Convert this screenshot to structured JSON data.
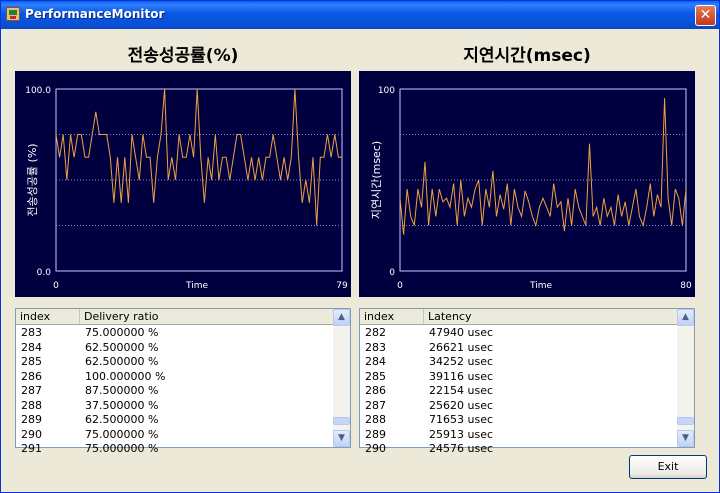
{
  "window": {
    "title": "PerformanceMonitor",
    "close_glyph": "✕"
  },
  "icons": {
    "app": "app-icon",
    "close": "close-icon",
    "scroll_up": "chevron-up-icon",
    "scroll_down": "chevron-down-icon"
  },
  "colors": {
    "plot_bg": "#000040",
    "line": "#f0a040",
    "grid": "#8888cc",
    "frame": "#c8c8ff",
    "text": "#ffffff"
  },
  "charts": [
    {
      "title": "전송성공률(%)",
      "ylabel": "전송성공률 (%)",
      "xlabel": "Time",
      "ytop": "100.0",
      "ybottom": "0.0",
      "xleft": "0",
      "xright": "79"
    },
    {
      "title": "지연시간(msec)",
      "ylabel": "지연시간(msec)",
      "xlabel": "Time",
      "ytop": "100",
      "ybottom": "0",
      "xleft": "0",
      "xright": "80"
    }
  ],
  "chart_data": [
    {
      "type": "line",
      "title": "전송성공률(%)",
      "xlabel": "Time",
      "ylabel": "전송성공률 (%)",
      "xlim": [
        0,
        79
      ],
      "ylim": [
        0,
        100
      ],
      "grid": true,
      "gridlines": [
        25,
        50,
        75
      ],
      "y": [
        75,
        62.5,
        75,
        50,
        75,
        62.5,
        75,
        75,
        62.5,
        62.5,
        75,
        87.5,
        75,
        75,
        75,
        62.5,
        37.5,
        62.5,
        37.5,
        62.5,
        37.5,
        75,
        62.5,
        50,
        75,
        62.5,
        62.5,
        37.5,
        62.5,
        75,
        100,
        50,
        62.5,
        50,
        75,
        62.5,
        62.5,
        75,
        62.5,
        100,
        62.5,
        37.5,
        62.5,
        50,
        75,
        50,
        62.5,
        62.5,
        50,
        62.5,
        75,
        75,
        62.5,
        50,
        62.5,
        50,
        62.5,
        50,
        62.5,
        62.5,
        75,
        62.5,
        50,
        62.5,
        50,
        62.5,
        100,
        62.5,
        37.5,
        50,
        37.5,
        62.5,
        25,
        62.5,
        62.5,
        75,
        62.5,
        75,
        62.5,
        62.5
      ]
    },
    {
      "type": "line",
      "title": "지연시간(msec)",
      "xlabel": "Time",
      "ylabel": "지연시간(msec)",
      "xlim": [
        0,
        80
      ],
      "ylim": [
        0,
        100
      ],
      "grid": true,
      "gridlines": [
        25,
        50,
        75
      ],
      "y": [
        40,
        20,
        45,
        30,
        25,
        45,
        35,
        60,
        25,
        45,
        30,
        45,
        38,
        40,
        35,
        48,
        25,
        50,
        30,
        40,
        35,
        45,
        50,
        25,
        45,
        35,
        55,
        30,
        42,
        34,
        48,
        25,
        45,
        35,
        30,
        44,
        38,
        30,
        25,
        35,
        40,
        35,
        30,
        48,
        35,
        38,
        22,
        40,
        25,
        45,
        35,
        30,
        25,
        70,
        30,
        35,
        25,
        40,
        30,
        35,
        25,
        42,
        30,
        38,
        25,
        35,
        45,
        30,
        25,
        35,
        48,
        30,
        42,
        35,
        95,
        40,
        25,
        45,
        40,
        25,
        45
      ]
    }
  ],
  "lists": [
    {
      "headers": [
        "index",
        "Delivery ratio"
      ],
      "rows": [
        [
          "283",
          "75.000000 %"
        ],
        [
          "284",
          "62.500000 %"
        ],
        [
          "285",
          "62.500000 %"
        ],
        [
          "286",
          "100.000000 %"
        ],
        [
          "287",
          "87.500000 %"
        ],
        [
          "288",
          "37.500000 %"
        ],
        [
          "289",
          "62.500000 %"
        ],
        [
          "290",
          "75.000000 %"
        ],
        [
          "291",
          "75.000000 %"
        ]
      ]
    },
    {
      "headers": [
        "index",
        "Latency"
      ],
      "rows": [
        [
          "282",
          "47940 usec"
        ],
        [
          "283",
          "26621 usec"
        ],
        [
          "284",
          "34252 usec"
        ],
        [
          "285",
          "39116 usec"
        ],
        [
          "286",
          "22154 usec"
        ],
        [
          "287",
          "25620 usec"
        ],
        [
          "288",
          "71653 usec"
        ],
        [
          "289",
          "25913 usec"
        ],
        [
          "290",
          "24576 usec"
        ]
      ]
    }
  ],
  "buttons": {
    "exit": "Exit"
  }
}
